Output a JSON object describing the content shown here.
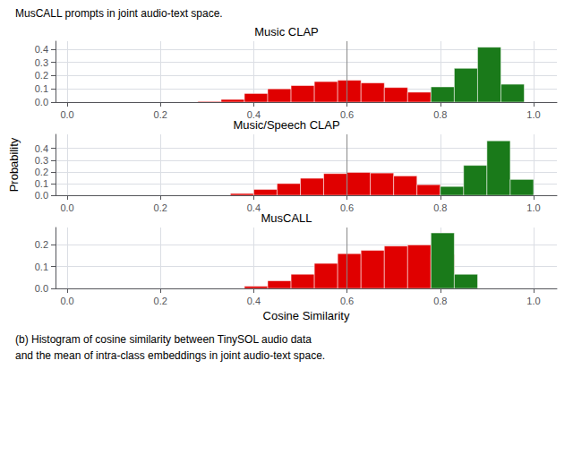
{
  "chart_data": [
    {
      "type": "histogram",
      "title": "Music CLAP",
      "annotations": [
        "MusCALL prompts in joint audio-text space."
      ],
      "series": [
        {
          "color": "#e00000",
          "bins": [
            0.28,
            0.33,
            0.38,
            0.43,
            0.48,
            0.53,
            0.58,
            0.63,
            0.68,
            0.73,
            0.78,
            0.83,
            0.88
          ],
          "values": [
            0.005,
            0.02,
            0.065,
            0.1,
            0.125,
            0.155,
            0.165,
            0.145,
            0.11,
            0.075,
            0.04,
            0.01
          ]
        },
        {
          "color": "#1a7a1a",
          "bins": [
            0.78,
            0.83,
            0.88,
            0.93,
            0.98
          ],
          "values": [
            0.115,
            0.255,
            0.415,
            0.135
          ]
        }
      ],
      "vline": {
        "x": 0.6,
        "color": "#888888"
      },
      "xlim": [
        -0.025,
        1.05
      ],
      "xticks": [
        {
          "value": 0,
          "label": "0.0"
        },
        0.2,
        0.4,
        0.6,
        0.8,
        {
          "value": 1,
          "label": "1.0"
        }
      ],
      "ylim": [
        0.0,
        0.46
      ],
      "yticks": [
        {
          "value": 0,
          "label": "0.0"
        },
        0.1,
        0.2,
        0.3,
        0.4
      ],
      "grid": true
    },
    {
      "type": "histogram",
      "title": "Music/Speech CLAP",
      "ylabel": "Probability",
      "series": [
        {
          "color": "#e00000",
          "bins": [
            0.35,
            0.4,
            0.45,
            0.5,
            0.55,
            0.6,
            0.65,
            0.7,
            0.75,
            0.8,
            0.85,
            0.9
          ],
          "values": [
            0.015,
            0.05,
            0.1,
            0.145,
            0.185,
            0.195,
            0.19,
            0.165,
            0.09,
            0.065,
            0.01
          ]
        },
        {
          "color": "#1a7a1a",
          "bins": [
            0.8,
            0.85,
            0.9,
            0.95,
            1.0
          ],
          "values": [
            0.075,
            0.255,
            0.465,
            0.135
          ]
        }
      ],
      "vline": {
        "x": 0.6,
        "color": "#888888"
      },
      "xlim": [
        -0.025,
        1.05
      ],
      "xticks": [
        {
          "value": 0,
          "label": "0.0"
        },
        0.2,
        0.4,
        0.6,
        0.8,
        {
          "value": 1,
          "label": "1.0"
        }
      ],
      "ylim": [
        0.0,
        0.52
      ],
      "yticks": [
        {
          "value": 0,
          "label": "0.0"
        },
        0.1,
        0.2,
        0.3,
        0.4
      ],
      "grid": true
    },
    {
      "type": "histogram",
      "title": "MusCALL",
      "xlabel": "Cosine Similarity",
      "annotations": [
        "(b) Histogram of cosine similarity between TinySOL audio data",
        "and the mean of intra-class embeddings in joint audio-text space."
      ],
      "series": [
        {
          "color": "#e00000",
          "bins": [
            0.38,
            0.43,
            0.48,
            0.53,
            0.58,
            0.63,
            0.68,
            0.73,
            0.78,
            0.83
          ],
          "values": [
            0.01,
            0.035,
            0.065,
            0.115,
            0.16,
            0.175,
            0.195,
            0.2,
            0.155
          ]
        },
        {
          "color": "#1a7a1a",
          "bins": [
            0.78,
            0.83,
            0.88
          ],
          "values": [
            0.255,
            0.065
          ]
        }
      ],
      "vline": {
        "x": 0.6,
        "color": "#888888"
      },
      "xlim": [
        -0.025,
        1.05
      ],
      "xticks": [
        {
          "value": 0,
          "label": "0.0"
        },
        0.2,
        0.4,
        0.6,
        0.8,
        {
          "value": 1,
          "label": "1.0"
        }
      ],
      "ylim": [
        0.0,
        0.28
      ],
      "yticks": [
        {
          "value": 0,
          "label": "0.0"
        },
        0.1,
        0.2
      ],
      "grid": true
    }
  ]
}
